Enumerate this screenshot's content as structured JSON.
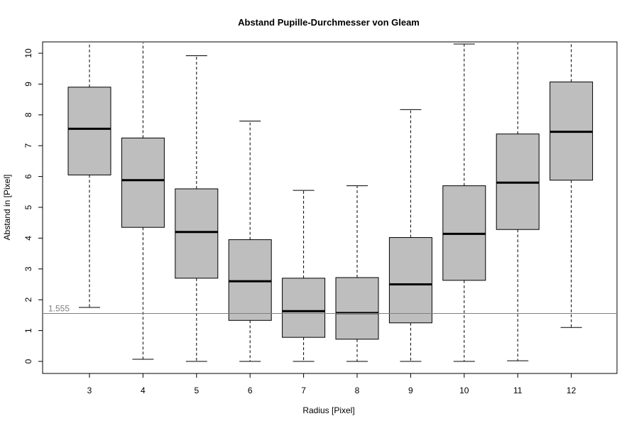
{
  "chart_data": {
    "type": "box",
    "title": "Abstand Pupille-Durchmesser von Gleam",
    "xlabel": "Radius [Pixel]",
    "ylabel": "Abstand in [Pixel]",
    "ylim": [
      -0.4,
      10.4
    ],
    "yticks": [
      0,
      1,
      2,
      3,
      4,
      5,
      6,
      7,
      8,
      9,
      10
    ],
    "categories": [
      "3",
      "4",
      "5",
      "6",
      "7",
      "8",
      "9",
      "10",
      "11",
      "12"
    ],
    "boxes": [
      {
        "min": 1.75,
        "q1": 6.05,
        "median": 7.55,
        "q3": 8.9,
        "max": 10.4
      },
      {
        "min": 0.07,
        "q1": 4.35,
        "median": 5.88,
        "q3": 7.25,
        "max": 10.4
      },
      {
        "min": 0.0,
        "q1": 2.7,
        "median": 4.2,
        "q3": 5.6,
        "max": 9.92
      },
      {
        "min": 0.0,
        "q1": 1.33,
        "median": 2.6,
        "q3": 3.95,
        "max": 7.8
      },
      {
        "min": 0.0,
        "q1": 0.78,
        "median": 1.63,
        "q3": 2.7,
        "max": 5.55
      },
      {
        "min": 0.0,
        "q1": 0.72,
        "median": 1.57,
        "q3": 2.72,
        "max": 5.7
      },
      {
        "min": 0.0,
        "q1": 1.25,
        "median": 2.5,
        "q3": 4.02,
        "max": 8.17
      },
      {
        "min": 0.0,
        "q1": 2.63,
        "median": 4.14,
        "q3": 5.7,
        "max": 10.3
      },
      {
        "min": 0.02,
        "q1": 4.28,
        "median": 5.8,
        "q3": 7.38,
        "max": 10.4
      },
      {
        "min": 1.1,
        "q1": 5.88,
        "median": 7.45,
        "q3": 9.07,
        "max": 10.4
      }
    ],
    "reference_line": {
      "value": 1.555,
      "label": "1.555",
      "color": "#808080"
    },
    "box_fill": "#bebebe",
    "grid": false,
    "legend": "none"
  }
}
